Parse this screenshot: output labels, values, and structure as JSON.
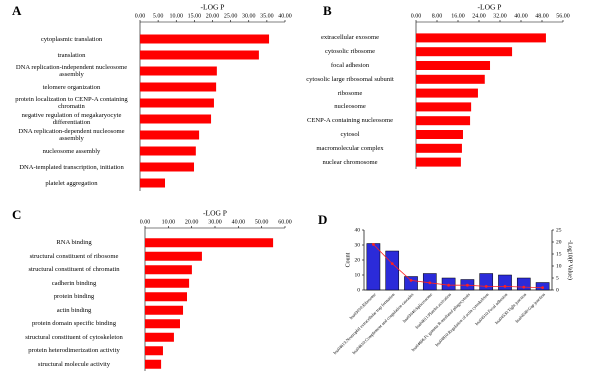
{
  "chart_data": [
    {
      "type": "hbar",
      "label": "A",
      "title": "-LOG P",
      "color": "#ff0000",
      "categories": [
        "cytoplasmic translation",
        "translation",
        "DNA replication-independent nucleosome assembly",
        "telomere organization",
        "protein localization to CENP-A containing chromatin",
        "negative regulation of megakaryocyte differentiation",
        "DNA replication-dependent nucleosome assembly",
        "nucleosome assembly",
        "DNA-templated transcription, initiation",
        "platelet aggregation"
      ],
      "values": [
        35.6,
        32.8,
        21.2,
        21.0,
        20.4,
        19.6,
        16.3,
        15.4,
        14.9,
        6.9
      ],
      "xlim": [
        0,
        40
      ],
      "xticks": [
        {
          "value": 0,
          "label": "0.00"
        },
        {
          "value": 5,
          "label": "5.00"
        },
        {
          "value": 10,
          "label": "10.00"
        },
        {
          "value": 15,
          "label": "15.00"
        },
        {
          "value": 20,
          "label": "20.00"
        },
        {
          "value": 25,
          "label": "25.00"
        },
        {
          "value": 30,
          "label": "30.00"
        },
        {
          "value": 35,
          "label": "35.00"
        },
        {
          "value": 40,
          "label": "40.00"
        }
      ]
    },
    {
      "type": "hbar",
      "label": "B",
      "title": "-LOG P",
      "color": "#ff0000",
      "categories": [
        "extracellular exosome",
        "cytosolic ribosome",
        "focal adhesion",
        "cytosolic large ribosomal subunit",
        "ribosome",
        "nucleosome",
        "CENP-A containing nucleosome",
        "cytosol",
        "macromolecular complex",
        "nuclear chromosome"
      ],
      "values": [
        49.5,
        36.6,
        28.2,
        26.2,
        23.6,
        21.0,
        20.6,
        17.9,
        17.5,
        17.1
      ],
      "xlim": [
        0,
        56
      ],
      "xticks": [
        {
          "value": 0,
          "label": "0.00"
        },
        {
          "value": 8,
          "label": "8.00"
        },
        {
          "value": 16,
          "label": "16.00"
        },
        {
          "value": 24,
          "label": "24.00"
        },
        {
          "value": 32,
          "label": "32.00"
        },
        {
          "value": 40,
          "label": "40.00"
        },
        {
          "value": 48,
          "label": "48.00"
        },
        {
          "value": 56,
          "label": "56.00"
        }
      ]
    },
    {
      "type": "hbar",
      "label": "C",
      "title": "-LOG P",
      "color": "#ff0000",
      "categories": [
        "RNA binding",
        "structural constituent of ribosome",
        "structural constituent of chromatin",
        "cadherin binding",
        "protein binding",
        "actin binding",
        "protein domain specific binding",
        "structural constituent of cytoskeleton",
        "protein heterodimerization activity",
        "structural molecule activity"
      ],
      "values": [
        54.9,
        24.4,
        20.1,
        18.9,
        18.0,
        16.3,
        15.0,
        12.4,
        7.7,
        6.9
      ],
      "xlim": [
        0,
        60
      ],
      "xticks": [
        {
          "value": 0,
          "label": "0.00"
        },
        {
          "value": 10,
          "label": "10.00"
        },
        {
          "value": 20,
          "label": "20.00"
        },
        {
          "value": 30,
          "label": "30.00"
        },
        {
          "value": 40,
          "label": "40.00"
        },
        {
          "value": 50,
          "label": "50.00"
        },
        {
          "value": 60,
          "label": "60.00"
        }
      ]
    },
    {
      "type": "bar-line",
      "label": "D",
      "ylabel": "Count",
      "y2label": "-Log10(P Value)",
      "categories": [
        "hsa03010:Ribosome",
        "hsa04613:Neutrophil extracellular trap formation",
        "hsa04610:Complement and coagulation cascades",
        "hsa03040:Spliceosome",
        "hsa04611:Platelet activation",
        "hsa04666:Fc gamma R-mediated phagocytosis",
        "hsa04810:Regulation of actin cytoskeleton",
        "hsa04510:Focal adhesion",
        "hsa04530:Tight junction",
        "hsa04540:Gap junction"
      ],
      "series": [
        {
          "color": "#2b2bd9",
          "values": [
            31,
            26,
            9,
            11,
            8,
            7,
            11,
            10,
            8,
            5
          ]
        },
        {
          "color": "#ff2020",
          "axis": "y2",
          "values": [
            19,
            11,
            4,
            3,
            2,
            2,
            1.5,
            1.5,
            1.2,
            1
          ]
        }
      ],
      "ylim": [
        0,
        40
      ],
      "yticks": [
        0,
        10,
        20,
        30,
        40
      ],
      "y2lim": [
        0,
        25
      ],
      "y2ticks": [
        0,
        5,
        10,
        15,
        20,
        25
      ]
    }
  ]
}
